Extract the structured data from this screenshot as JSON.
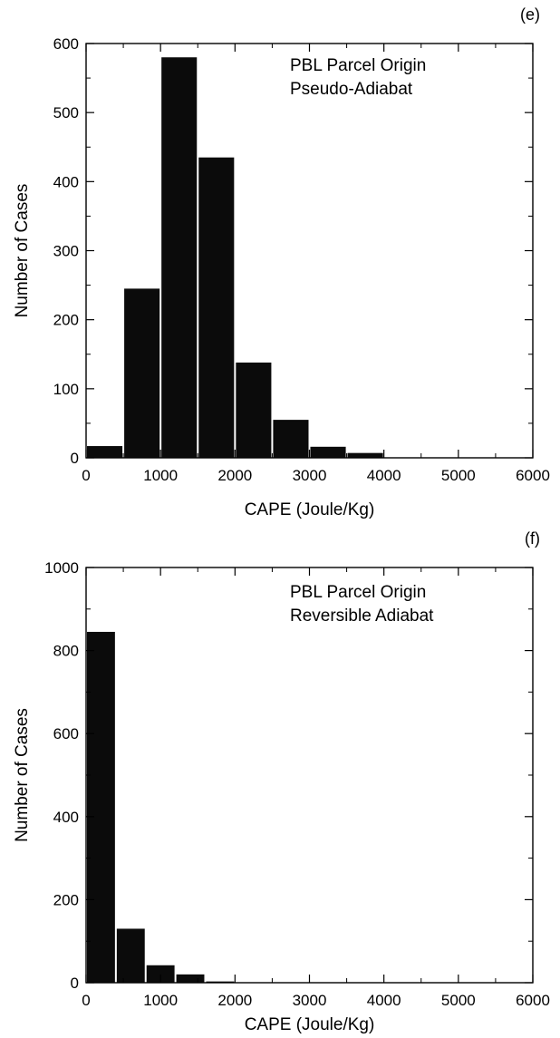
{
  "chart_data": [
    {
      "type": "bar",
      "panel_label": "(e)",
      "annotation": [
        "PBL Parcel Origin",
        "Pseudo-Adiabat"
      ],
      "xlabel": "CAPE  (Joule/Kg)",
      "ylabel": "Number of Cases",
      "xlim": [
        0,
        6000
      ],
      "ylim": [
        0,
        600
      ],
      "xticks": [
        "0",
        "1000",
        "2000",
        "3000",
        "4000",
        "5000",
        "6000"
      ],
      "yticks": [
        "0",
        "100",
        "200",
        "300",
        "400",
        "500",
        "600"
      ],
      "bin_width": 500,
      "x": [
        0,
        500,
        1000,
        1500,
        2000,
        2500,
        3000,
        3500
      ],
      "values": [
        17,
        245,
        580,
        435,
        138,
        55,
        16,
        7
      ]
    },
    {
      "type": "bar",
      "panel_label": "(f)",
      "annotation": [
        "PBL Parcel Origin",
        "Reversible Adiabat"
      ],
      "xlabel": "CAPE  (Joule/Kg)",
      "ylabel": "Number of Cases",
      "xlim": [
        0,
        6000
      ],
      "ylim": [
        0,
        1000
      ],
      "xticks": [
        "0",
        "1000",
        "2000",
        "3000",
        "4000",
        "5000",
        "6000"
      ],
      "yticks": [
        "0",
        "200",
        "400",
        "600",
        "800",
        "1000"
      ],
      "bin_width": 400,
      "x": [
        0,
        400,
        800,
        1200,
        1600
      ],
      "values": [
        845,
        130,
        42,
        20,
        3
      ]
    }
  ]
}
